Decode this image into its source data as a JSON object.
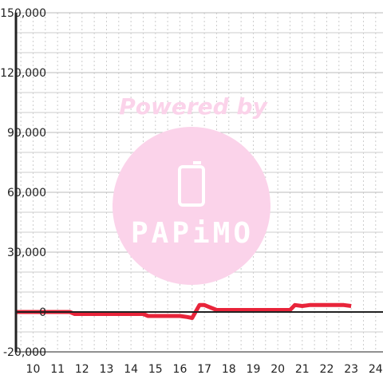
{
  "watermark": {
    "line1": "Powered by",
    "brand": "PAPiMO",
    "color": "#fbd3ea",
    "icon": "phone-icon"
  },
  "colors": {
    "series": "#e8243a",
    "axis": "#222222",
    "grid_major": "#bbbbbb",
    "grid_minor": "#cccccc",
    "background": "#ffffff"
  },
  "chart_data": {
    "type": "line",
    "title": "",
    "xlabel": "",
    "ylabel": "",
    "xlim": [
      9.3,
      24.3
    ],
    "ylim": [
      -20000,
      150000
    ],
    "grid": true,
    "x_ticks": [
      10,
      11,
      12,
      13,
      14,
      15,
      16,
      17,
      18,
      19,
      20,
      21,
      22,
      23,
      24
    ],
    "y_ticks": [
      -20000,
      0,
      30000,
      60000,
      90000,
      120000,
      150000
    ],
    "x_tick_labels": [
      "10",
      "11",
      "12",
      "13",
      "14",
      "15",
      "16",
      "17",
      "18",
      "19",
      "20",
      "21",
      "22",
      "23",
      "24"
    ],
    "y_tick_labels": [
      "-20,000",
      "0",
      "30,000",
      "60,000",
      "90,000",
      "120,000",
      "150,000"
    ],
    "series": [
      {
        "x": [
          9.3,
          11.5,
          11.7,
          12.0,
          13.0,
          14.0,
          14.5,
          14.7,
          15.0,
          16.0,
          16.3,
          16.5,
          16.8,
          17.0,
          17.2,
          17.5,
          18.0,
          19.0,
          20.0,
          20.5,
          20.7,
          21.0,
          21.3,
          22.0,
          22.7,
          23.0
        ],
        "y": [
          0,
          0,
          -1000,
          -1000,
          -1000,
          -1000,
          -1000,
          -2000,
          -2000,
          -2000,
          -2500,
          -3000,
          3500,
          3500,
          2500,
          1000,
          1000,
          1000,
          1000,
          1000,
          3500,
          3000,
          3500,
          3500,
          3500,
          3000
        ]
      }
    ]
  }
}
